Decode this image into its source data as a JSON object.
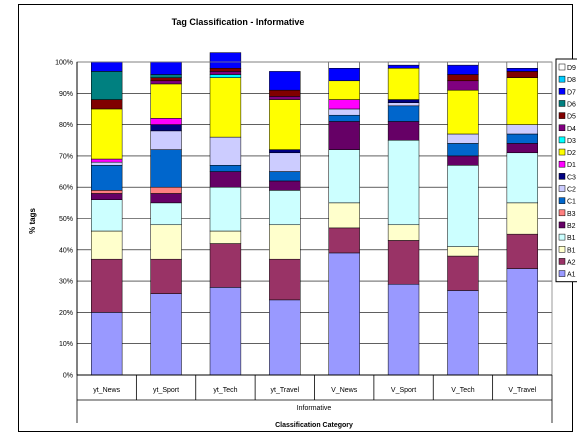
{
  "chart_data": {
    "type": "bar",
    "stacked": true,
    "title": "Tag Classification - Informative",
    "xlabel": "Classification Category",
    "x_group_label": "Informative",
    "ylabel": "% tags",
    "ylim": [
      0,
      100
    ],
    "yticks": [
      "0%",
      "10%",
      "20%",
      "30%",
      "40%",
      "50%",
      "60%",
      "70%",
      "80%",
      "90%",
      "100%"
    ],
    "grid": true,
    "legend_position": "right",
    "categories": [
      "yt_News",
      "yt_Sport",
      "yt_Tech",
      "yt_Travel",
      "V_News",
      "V_Sport",
      "V_Tech",
      "V_Travel"
    ],
    "series": [
      {
        "name": "A1",
        "color": "#9999ff",
        "values": [
          20,
          26,
          28,
          24,
          39,
          29,
          27,
          34
        ]
      },
      {
        "name": "A2",
        "color": "#993366",
        "values": [
          17,
          11,
          14,
          13,
          8,
          14,
          11,
          11
        ]
      },
      {
        "name": "B1",
        "color": "#ffffcc",
        "values": [
          9,
          11,
          4,
          11,
          8,
          5,
          3,
          10
        ]
      },
      {
        "name": "B1",
        "color": "#ccffff",
        "values": [
          10,
          7,
          14,
          11,
          17,
          27,
          26,
          16
        ]
      },
      {
        "name": "B2",
        "color": "#660066",
        "values": [
          2,
          3,
          5,
          3,
          9,
          6,
          3,
          3
        ]
      },
      {
        "name": "B3",
        "color": "#ff8080",
        "values": [
          1,
          2,
          0,
          0,
          0,
          0,
          0,
          0
        ]
      },
      {
        "name": "C1",
        "color": "#0066cc",
        "values": [
          8,
          12,
          2,
          3,
          2,
          5,
          4,
          3
        ]
      },
      {
        "name": "C2",
        "color": "#ccccff",
        "values": [
          1,
          6,
          9,
          6,
          2,
          1,
          3,
          3
        ]
      },
      {
        "name": "C3",
        "color": "#000080",
        "values": [
          0,
          2,
          0,
          1,
          0,
          1,
          0,
          0
        ]
      },
      {
        "name": "D1",
        "color": "#ff00ff",
        "values": [
          1,
          2,
          0,
          0,
          3,
          0,
          0,
          0
        ]
      },
      {
        "name": "D2",
        "color": "#ffff00",
        "values": [
          16,
          11,
          19,
          16,
          6,
          10,
          14,
          15
        ]
      },
      {
        "name": "D3",
        "color": "#00ffff",
        "values": [
          0,
          0,
          1,
          0,
          0,
          0,
          0,
          0
        ]
      },
      {
        "name": "D4",
        "color": "#800080",
        "values": [
          0,
          1,
          1,
          1,
          0,
          0,
          3,
          0
        ]
      },
      {
        "name": "D5",
        "color": "#800000",
        "values": [
          3,
          1,
          1,
          2,
          0,
          0,
          2,
          2
        ]
      },
      {
        "name": "D6",
        "color": "#008080",
        "values": [
          9,
          1,
          0,
          0,
          0,
          0,
          0,
          0
        ]
      },
      {
        "name": "D7",
        "color": "#0000ff",
        "values": [
          3,
          4,
          5,
          6,
          4,
          1,
          3,
          1
        ]
      },
      {
        "name": "D8",
        "color": "#00ccff",
        "values": [
          0,
          0,
          0,
          0,
          0,
          0,
          0,
          0
        ]
      },
      {
        "name": "D9",
        "color": "#ffffff",
        "values": [
          0,
          0,
          0,
          0,
          2,
          1,
          1,
          2
        ]
      }
    ]
  }
}
